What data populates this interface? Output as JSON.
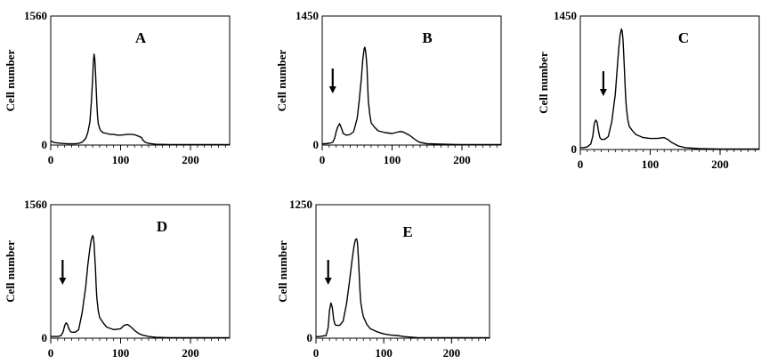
{
  "chart_data": [
    {
      "type": "line",
      "panel": "A",
      "ylabel": "Cell number",
      "xlim": [
        0,
        256
      ],
      "ylim": [
        0,
        1560
      ],
      "y_ticks": [
        "0",
        "1560"
      ],
      "x_ticks": [
        0,
        100,
        200
      ],
      "arrow_at": null,
      "x": [
        0,
        5,
        15,
        25,
        35,
        40,
        45,
        50,
        53,
        56,
        58,
        60,
        61,
        62,
        63,
        64,
        65,
        66,
        67,
        68,
        70,
        72,
        75,
        80,
        85,
        90,
        95,
        100,
        105,
        110,
        115,
        120,
        125,
        130,
        132,
        135,
        140,
        150,
        170,
        200,
        230,
        256
      ],
      "y": [
        50,
        30,
        20,
        15,
        15,
        20,
        35,
        80,
        150,
        280,
        500,
        800,
        1000,
        1100,
        1040,
        880,
        700,
        500,
        350,
        260,
        200,
        170,
        150,
        140,
        130,
        130,
        120,
        120,
        125,
        130,
        130,
        125,
        110,
        90,
        60,
        35,
        20,
        10,
        5,
        5,
        5,
        5
      ]
    },
    {
      "type": "line",
      "panel": "B",
      "ylabel": "Cell number",
      "xlim": [
        0,
        256
      ],
      "ylim": [
        0,
        1450
      ],
      "y_ticks": [
        "0",
        "1450"
      ],
      "x_ticks": [
        0,
        100,
        200
      ],
      "arrow_at": 15,
      "x": [
        0,
        5,
        10,
        15,
        18,
        20,
        22,
        25,
        28,
        30,
        35,
        40,
        45,
        50,
        53,
        56,
        58,
        60,
        61,
        62,
        63,
        64,
        65,
        66,
        68,
        70,
        75,
        80,
        90,
        100,
        105,
        110,
        115,
        120,
        125,
        130,
        135,
        140,
        150,
        170,
        200,
        230,
        256
      ],
      "y": [
        15,
        15,
        20,
        30,
        80,
        150,
        200,
        240,
        180,
        130,
        110,
        120,
        150,
        300,
        500,
        750,
        950,
        1080,
        1100,
        1060,
        980,
        880,
        700,
        500,
        350,
        250,
        200,
        160,
        140,
        130,
        140,
        150,
        150,
        130,
        110,
        80,
        50,
        30,
        15,
        10,
        5,
        5,
        5
      ]
    },
    {
      "type": "line",
      "panel": "C",
      "ylabel": "Cell number",
      "xlim": [
        0,
        256
      ],
      "ylim": [
        0,
        1450
      ],
      "y_ticks": [
        "0",
        "1450"
      ],
      "x_ticks": [
        0,
        100,
        200
      ],
      "arrow_at": 33,
      "x": [
        0,
        5,
        10,
        15,
        18,
        20,
        22,
        24,
        26,
        28,
        30,
        35,
        40,
        45,
        50,
        53,
        55,
        57,
        59,
        60,
        61,
        62,
        63,
        64,
        65,
        66,
        68,
        70,
        75,
        80,
        90,
        100,
        110,
        115,
        120,
        125,
        130,
        140,
        150,
        170,
        200,
        230,
        256
      ],
      "y": [
        20,
        20,
        30,
        60,
        150,
        280,
        320,
        300,
        200,
        130,
        110,
        110,
        140,
        300,
        600,
        900,
        1100,
        1250,
        1310,
        1280,
        1200,
        1050,
        880,
        700,
        560,
        450,
        320,
        250,
        200,
        160,
        130,
        120,
        120,
        125,
        130,
        110,
        80,
        40,
        20,
        10,
        5,
        5,
        5
      ]
    },
    {
      "type": "line",
      "panel": "D",
      "ylabel": "Cell number",
      "xlim": [
        0,
        256
      ],
      "ylim": [
        0,
        1560
      ],
      "y_ticks": [
        "0",
        "1560"
      ],
      "x_ticks": [
        0,
        100,
        200
      ],
      "arrow_at": 17,
      "x": [
        0,
        5,
        10,
        15,
        18,
        20,
        22,
        24,
        26,
        28,
        30,
        35,
        40,
        45,
        50,
        53,
        56,
        58,
        60,
        61,
        62,
        63,
        64,
        65,
        66,
        68,
        70,
        75,
        80,
        90,
        100,
        105,
        110,
        115,
        120,
        125,
        130,
        140,
        150,
        170,
        200,
        230,
        256
      ],
      "y": [
        20,
        20,
        20,
        30,
        80,
        150,
        180,
        160,
        110,
        80,
        70,
        70,
        100,
        300,
        600,
        850,
        1050,
        1150,
        1200,
        1180,
        1100,
        950,
        800,
        620,
        470,
        320,
        240,
        180,
        130,
        100,
        110,
        150,
        160,
        130,
        90,
        60,
        40,
        20,
        10,
        5,
        5,
        5,
        5
      ]
    },
    {
      "type": "line",
      "panel": "E",
      "ylabel": "Cell number",
      "xlim": [
        0,
        256
      ],
      "ylim": [
        0,
        1250
      ],
      "y_ticks": [
        "0",
        "1250"
      ],
      "x_ticks": [
        0,
        100,
        200
      ],
      "arrow_at": 18,
      "x": [
        0,
        5,
        10,
        15,
        18,
        20,
        22,
        24,
        26,
        28,
        30,
        35,
        40,
        45,
        50,
        53,
        56,
        58,
        60,
        61,
        62,
        63,
        64,
        65,
        66,
        68,
        70,
        75,
        80,
        90,
        100,
        110,
        120,
        125,
        130,
        140,
        150,
        170,
        200,
        230,
        256
      ],
      "y": [
        15,
        15,
        20,
        25,
        100,
        260,
        330,
        290,
        180,
        130,
        120,
        120,
        160,
        320,
        560,
        720,
        860,
        920,
        930,
        900,
        820,
        700,
        560,
        440,
        340,
        260,
        200,
        130,
        90,
        60,
        40,
        30,
        25,
        20,
        15,
        10,
        5,
        5,
        5,
        5,
        5
      ]
    }
  ]
}
